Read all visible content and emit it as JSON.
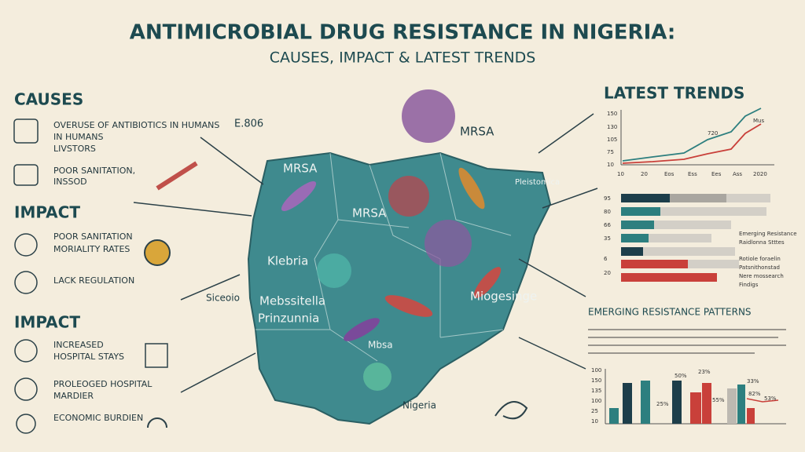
{
  "header": {
    "title": "ANTIMICROBIAL DRUG RESISTANCE IN NIGERIA:",
    "subtitle": "CAUSES, IMPACT & LATEST TRENDS"
  },
  "left": {
    "sections": [
      {
        "heading": "CAUSES",
        "items": [
          {
            "lines": [
              "OVERUSE OF ANTIBIOTICS IN HUMANS",
              "IN HUMANS",
              "LIVSTORS"
            ]
          },
          {
            "lines": [
              "POOR SANITATION,",
              "INSSOD"
            ]
          }
        ]
      },
      {
        "heading": "IMPACT",
        "items": [
          {
            "lines": [
              "POOR SANITATION",
              "MORIALITY RATES"
            ]
          },
          {
            "lines": [
              "LACK REGULATION"
            ]
          }
        ]
      },
      {
        "heading": "IMPACT",
        "items": [
          {
            "lines": [
              "INCREASED",
              "HOSPITAL STAYS"
            ]
          },
          {
            "lines": [
              "PROLEOGED HOSPITAL",
              "MARDIER"
            ]
          },
          {
            "lines": [
              "ECONOMIC BURDIEN"
            ]
          }
        ]
      }
    ]
  },
  "map": {
    "labels": [
      "E.806",
      "MRSA",
      "MRSA",
      "MRSA",
      "Pleistomica",
      "Klebria",
      "Mebssitella",
      "Prinzunnia",
      "Siceoio",
      "Mbsa",
      "Miogesinge",
      "Nigeria"
    ]
  },
  "trends": {
    "title": "LATEST TRENDS",
    "line_chart": {
      "y_labels": [
        "150",
        "130",
        "105",
        "75",
        "10"
      ],
      "x_labels": [
        "10",
        "20",
        "Eos",
        "Ess",
        "Ees",
        "Ass",
        "2020"
      ],
      "point_labels": [
        "720",
        "Mus"
      ]
    },
    "bar_values": [
      "95",
      "80",
      "66",
      "35",
      "6",
      "20"
    ],
    "bar_notes": [
      "Emerging Resistance",
      "Raidlonna Stttes",
      "Rotiole foraelin",
      "Patsnithonstad",
      "Nere mossearch",
      "Findigs"
    ]
  },
  "patterns": {
    "title": "EMERGING RESISTANCE PATTERNS",
    "y_labels": [
      "100",
      "150",
      "135",
      "100",
      "25",
      "10"
    ],
    "bar_labels": [
      "50%",
      "23%",
      "25%",
      "55%",
      "33%",
      "82%",
      "53%"
    ]
  }
}
